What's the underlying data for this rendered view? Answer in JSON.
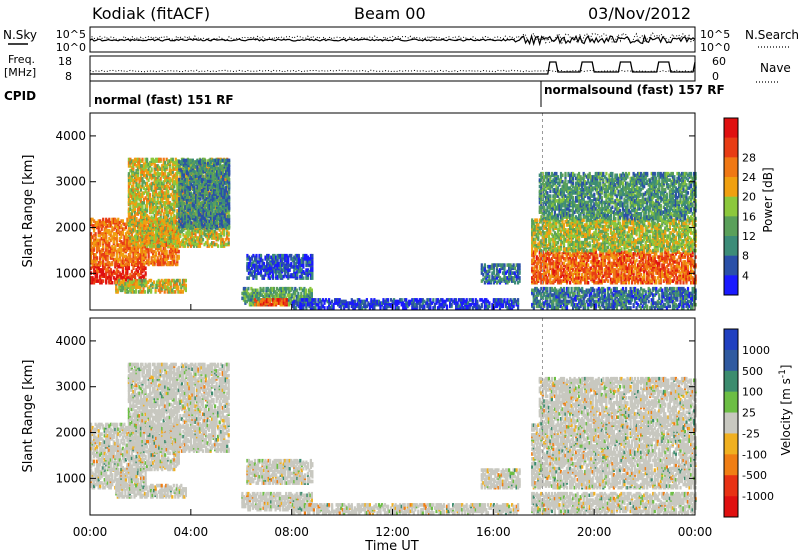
{
  "header": {
    "station": "Kodiak (fitACF)",
    "beam": "Beam 00",
    "date": "03/Nov/2012"
  },
  "left_labels": {
    "nsky": "N.Sky",
    "freq": "Freq.",
    "freq_unit": "[MHz]",
    "cpid": "CPID"
  },
  "right_labels": {
    "nsearch": "N.Search",
    "nave": "Nave"
  },
  "noise_ticks_left": [
    "10^5",
    "10^0"
  ],
  "noise_ticks_right": [
    "10^5",
    "10^0"
  ],
  "freq_ticks": [
    "18",
    "8"
  ],
  "nave_ticks": [
    "60",
    "0"
  ],
  "cpid_modes": [
    "normal (fast) 151 RF",
    "normalsound (fast) 157 RF"
  ],
  "colors": {
    "power": [
      "#1a1aff",
      "#2a50a8",
      "#3c8c78",
      "#5aa05a",
      "#8cc83c",
      "#f0a010",
      "#f07814",
      "#e83c14",
      "#e01010"
    ],
    "velocity": [
      "#2040c0",
      "#305aa0",
      "#3c8c6e",
      "#6cbe44",
      "#c8c8c0",
      "#f0b020",
      "#f07e14",
      "#e83214",
      "#e01010"
    ]
  },
  "chart_data": [
    {
      "type": "heatmap",
      "title": "",
      "xlabel": "",
      "ylabel": "Slant Range [km]",
      "xlim": [
        "00:00",
        "24:00"
      ],
      "x_ticks": [
        "00:00",
        "04:00",
        "08:00",
        "12:00",
        "16:00",
        "20:00",
        "00:00"
      ],
      "ylim": [
        200,
        4500
      ],
      "y_ticks": [
        1000,
        2000,
        3000,
        4000
      ],
      "colorbar": {
        "label": "Power [dB]",
        "ticks": [
          4,
          8,
          12,
          16,
          20,
          24,
          28
        ]
      },
      "blobs": [
        {
          "t0": 0.0,
          "t1": 2.2,
          "r0": 800,
          "r1": 1200,
          "level": 0.95
        },
        {
          "t0": 0.0,
          "t1": 3.5,
          "r0": 1200,
          "r1": 2200,
          "level": 0.75
        },
        {
          "t0": 1.5,
          "t1": 5.5,
          "r0": 1600,
          "r1": 3500,
          "level": 0.55
        },
        {
          "t0": 3.5,
          "t1": 5.5,
          "r0": 2000,
          "r1": 3500,
          "level": 0.25
        },
        {
          "t0": 1.0,
          "t1": 3.8,
          "r0": 600,
          "r1": 850,
          "level": 0.55
        },
        {
          "t0": 6.2,
          "t1": 8.8,
          "r0": 900,
          "r1": 1400,
          "level": 0.1
        },
        {
          "t0": 6.0,
          "t1": 8.8,
          "r0": 320,
          "r1": 700,
          "level": 0.35
        },
        {
          "t0": 6.5,
          "t1": 7.8,
          "r0": 320,
          "r1": 450,
          "level": 0.85
        },
        {
          "t0": 8.0,
          "t1": 17.0,
          "r0": 250,
          "r1": 450,
          "level": 0.05
        },
        {
          "t0": 15.5,
          "t1": 17.0,
          "r0": 800,
          "r1": 1200,
          "level": 0.2
        },
        {
          "t0": 17.5,
          "t1": 24.0,
          "r0": 800,
          "r1": 1500,
          "level": 0.8
        },
        {
          "t0": 17.5,
          "t1": 24.0,
          "r0": 1500,
          "r1": 2200,
          "level": 0.5
        },
        {
          "t0": 17.8,
          "t1": 24.0,
          "r0": 2200,
          "r1": 3200,
          "level": 0.3
        },
        {
          "t0": 17.5,
          "t1": 24.0,
          "r0": 250,
          "r1": 700,
          "level": 0.2
        }
      ]
    },
    {
      "type": "heatmap",
      "title": "",
      "xlabel": "Time UT",
      "ylabel": "Slant Range [km]",
      "xlim": [
        "00:00",
        "24:00"
      ],
      "x_ticks": [
        "00:00",
        "04:00",
        "08:00",
        "12:00",
        "16:00",
        "20:00",
        "00:00"
      ],
      "ylim": [
        200,
        4500
      ],
      "y_ticks": [
        1000,
        2000,
        3000,
        4000
      ],
      "colorbar": {
        "label": "Velocity [m s^-1]",
        "ticks": [
          1000,
          500,
          100,
          25,
          -25,
          -100,
          -500,
          -1000
        ]
      },
      "blobs": [
        {
          "t0": 0.0,
          "t1": 2.2,
          "r0": 800,
          "r1": 1200,
          "level": 0.5
        },
        {
          "t0": 0.0,
          "t1": 3.5,
          "r0": 1200,
          "r1": 2200,
          "level": 0.5
        },
        {
          "t0": 1.5,
          "t1": 5.5,
          "r0": 1600,
          "r1": 3500,
          "level": 0.5
        },
        {
          "t0": 1.0,
          "t1": 3.8,
          "r0": 600,
          "r1": 850,
          "level": 0.5
        },
        {
          "t0": 6.2,
          "t1": 8.8,
          "r0": 900,
          "r1": 1400,
          "level": 0.5
        },
        {
          "t0": 6.0,
          "t1": 8.8,
          "r0": 320,
          "r1": 700,
          "level": 0.5
        },
        {
          "t0": 8.0,
          "t1": 17.0,
          "r0": 250,
          "r1": 450,
          "level": 0.5
        },
        {
          "t0": 15.5,
          "t1": 17.0,
          "r0": 800,
          "r1": 1200,
          "level": 0.5
        },
        {
          "t0": 17.5,
          "t1": 24.0,
          "r0": 800,
          "r1": 1500,
          "level": 0.5
        },
        {
          "t0": 17.5,
          "t1": 24.0,
          "r0": 1500,
          "r1": 2200,
          "level": 0.5
        },
        {
          "t0": 17.8,
          "t1": 24.0,
          "r0": 2200,
          "r1": 3200,
          "level": 0.5
        },
        {
          "t0": 17.5,
          "t1": 24.0,
          "r0": 250,
          "r1": 700,
          "level": 0.5
        }
      ]
    }
  ]
}
